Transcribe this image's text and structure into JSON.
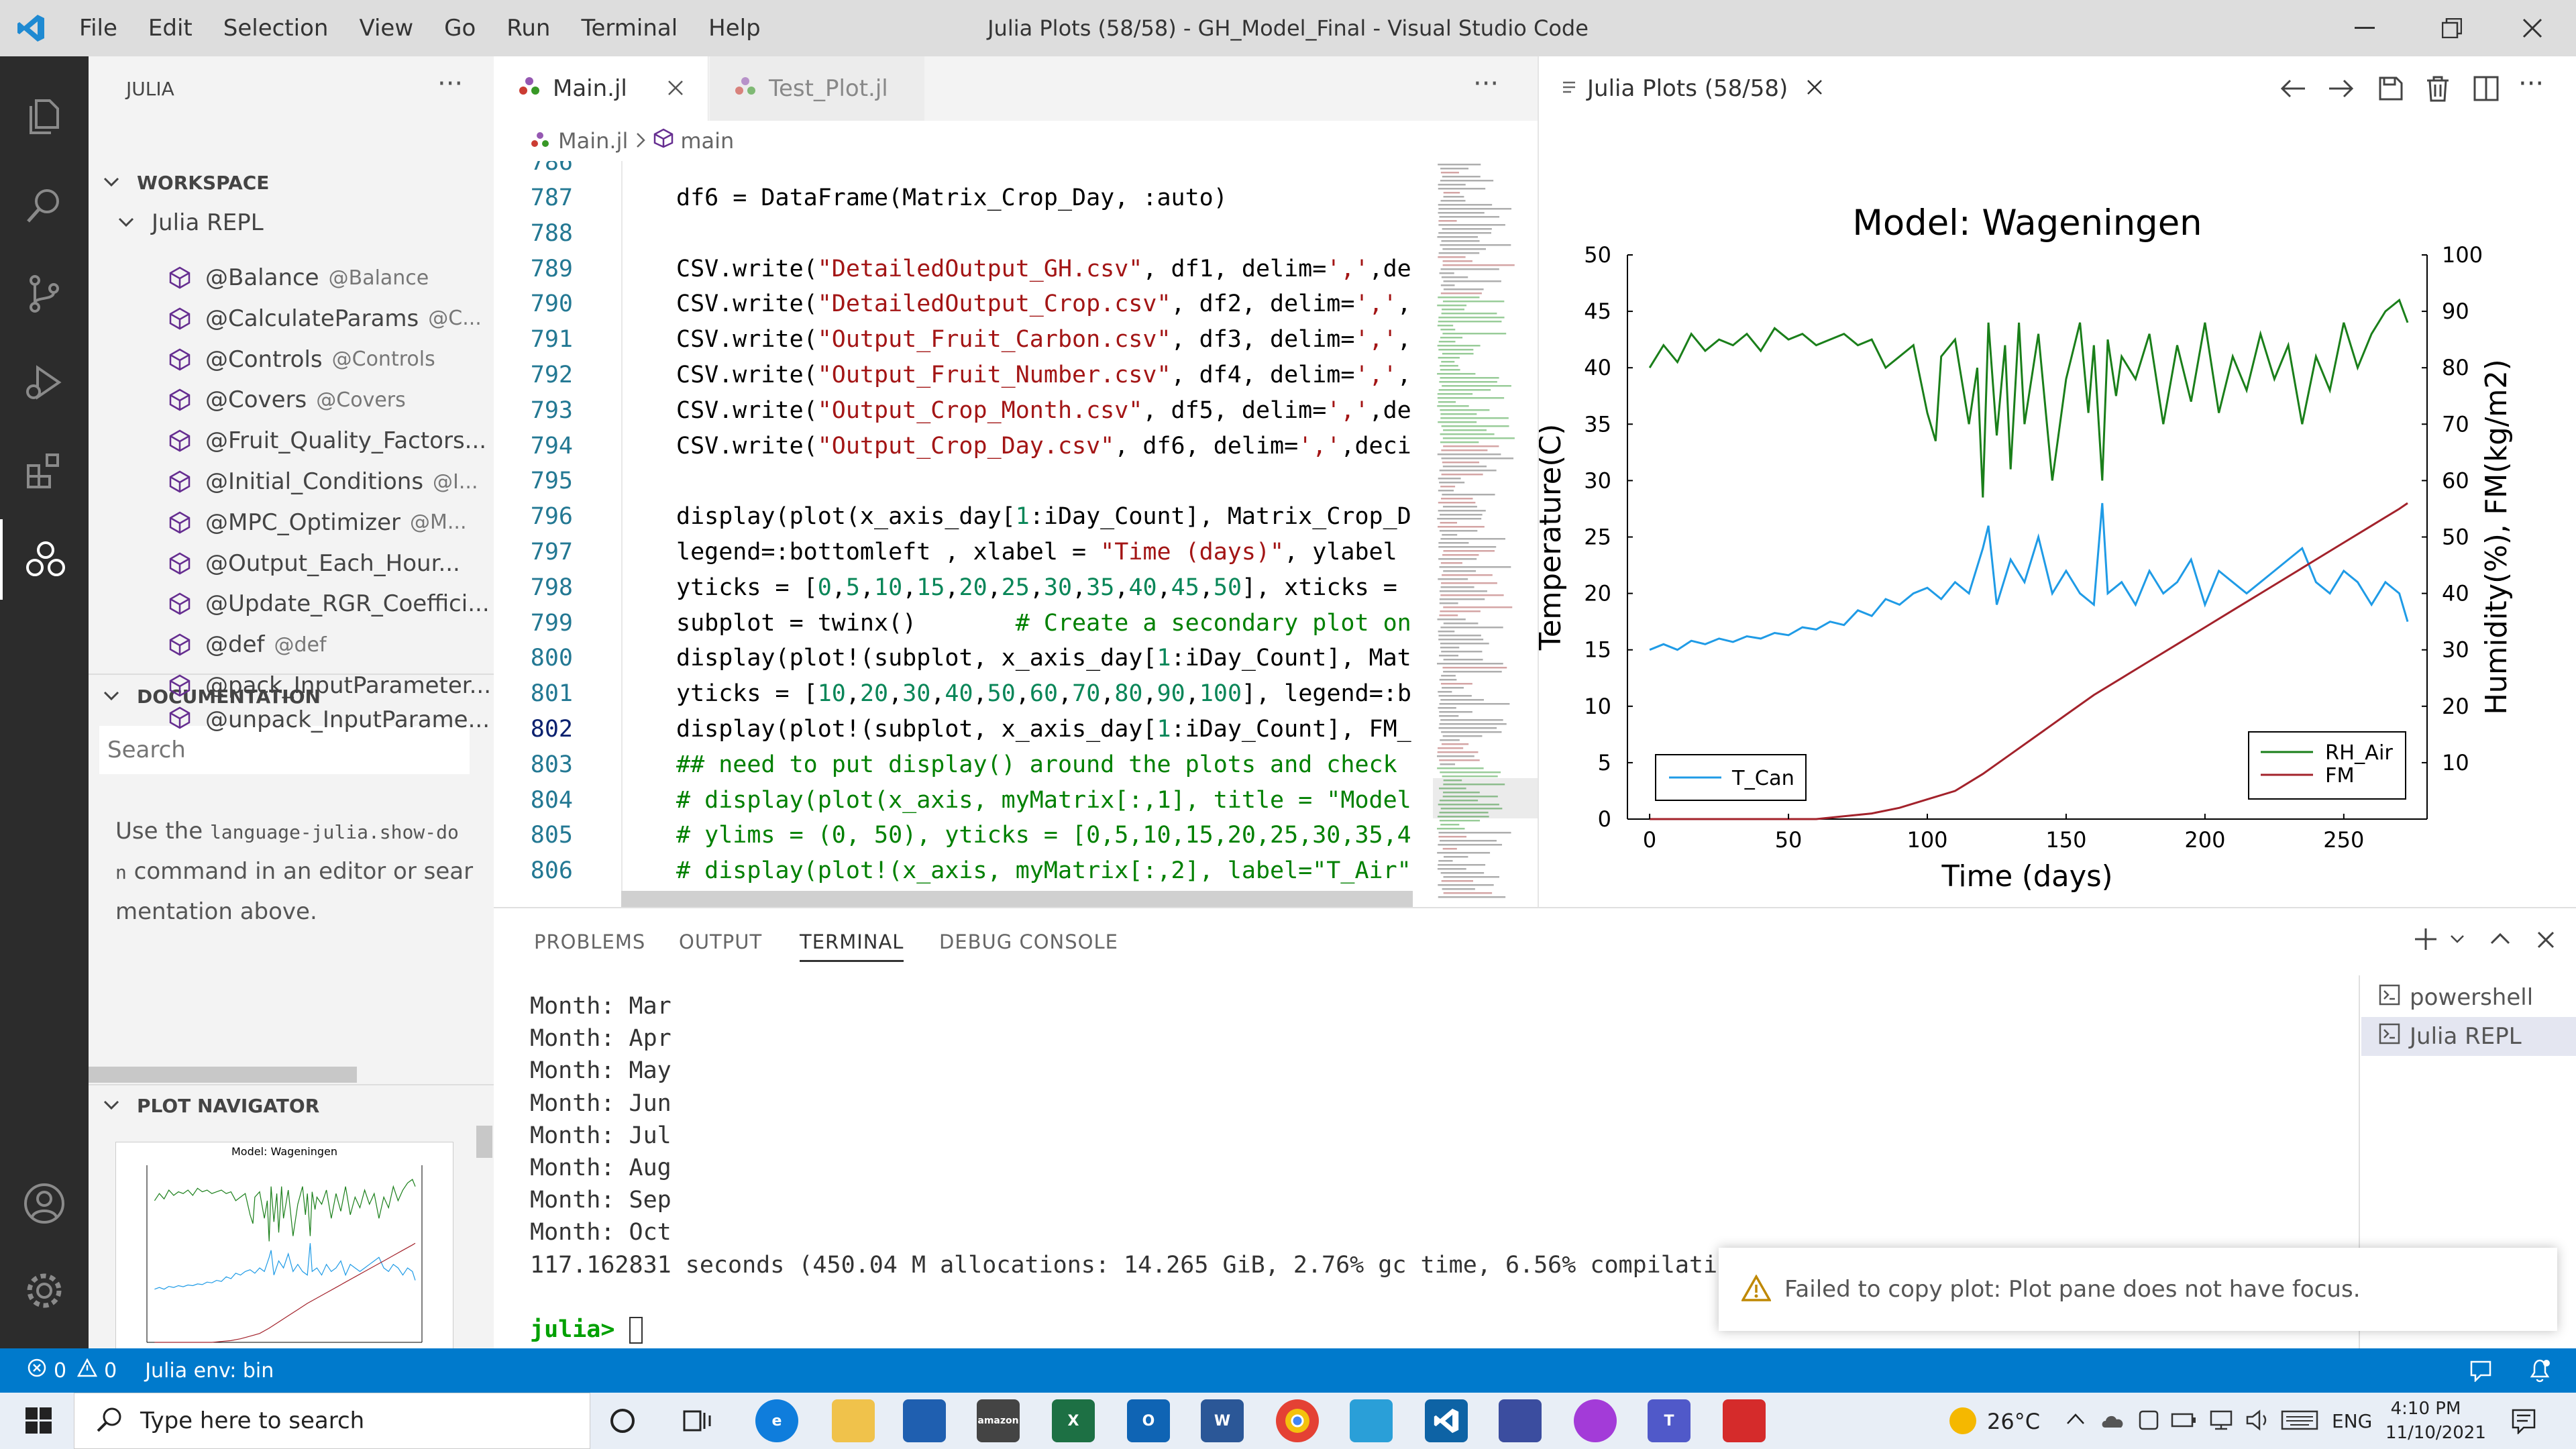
{
  "titlebar": {
    "menu": [
      "File",
      "Edit",
      "Selection",
      "View",
      "Go",
      "Run",
      "Terminal",
      "Help"
    ],
    "title": "Julia Plots (58/58) - GH_Model_Final - Visual Studio Code"
  },
  "sidebar": {
    "header": "JULIA",
    "workspace_label": "WORKSPACE",
    "repl_label": "Julia REPL",
    "items": [
      {
        "label": "@Balance",
        "sub": "@Balance"
      },
      {
        "label": "@CalculateParams",
        "sub": "@C..."
      },
      {
        "label": "@Controls",
        "sub": "@Controls"
      },
      {
        "label": "@Covers",
        "sub": "@Covers"
      },
      {
        "label": "@Fruit_Quality_Factors...",
        "sub": ""
      },
      {
        "label": "@Initial_Conditions",
        "sub": "@I..."
      },
      {
        "label": "@MPC_Optimizer",
        "sub": "@M..."
      },
      {
        "label": "@Output_Each_Hour...",
        "sub": ""
      },
      {
        "label": "@Update_RGR_Coeffici...",
        "sub": ""
      },
      {
        "label": "@def",
        "sub": "@def"
      },
      {
        "label": "@pack_InputParameter...",
        "sub": ""
      },
      {
        "label": "@unpack_InputParame...",
        "sub": ""
      }
    ],
    "documentation_label": "DOCUMENTATION",
    "search_placeholder": "Search",
    "doc_text_1": "Use the ",
    "doc_code_1": "language-julia.show-do",
    "doc_code_2": "n",
    "doc_text_2": " command in an editor or sear",
    "doc_text_3": "mentation above.",
    "plot_navigator_label": "PLOT NAVIGATOR",
    "thumb_title": "Model: Wageningen"
  },
  "editor": {
    "tabs": [
      {
        "label": "Main.jl",
        "active": true
      },
      {
        "label": "Test_Plot.jl",
        "active": false
      }
    ],
    "breadcrumb_file": "Main.jl",
    "breadcrumb_symbol": "main",
    "lines": [
      {
        "n": "786",
        "t": ""
      },
      {
        "n": "787",
        "t": "df6 = DataFrame(Matrix_Crop_Day, :auto)"
      },
      {
        "n": "788",
        "t": ""
      },
      {
        "n": "789",
        "t": "CSV.write(\"DetailedOutput_GH.csv\", df1, delim=',',de"
      },
      {
        "n": "790",
        "t": "CSV.write(\"DetailedOutput_Crop.csv\", df2, delim=',',"
      },
      {
        "n": "791",
        "t": "CSV.write(\"Output_Fruit_Carbon.csv\", df3, delim=',',"
      },
      {
        "n": "792",
        "t": "CSV.write(\"Output_Fruit_Number.csv\", df4, delim=',',"
      },
      {
        "n": "793",
        "t": "CSV.write(\"Output_Crop_Month.csv\", df5, delim=',',de"
      },
      {
        "n": "794",
        "t": "CSV.write(\"Output_Crop_Day.csv\", df6, delim=',',deci"
      },
      {
        "n": "795",
        "t": ""
      },
      {
        "n": "796",
        "t": "display(plot(x_axis_day[1:iDay_Count], Matrix_Crop_D"
      },
      {
        "n": "797",
        "t": "legend=:bottomleft , xlabel = \"Time (days)\", ylabel"
      },
      {
        "n": "798",
        "t": "yticks = [0,5,10,15,20,25,30,35,40,45,50], xticks ="
      },
      {
        "n": "799",
        "t": "subplot = twinx()       # Create a secondary plot on"
      },
      {
        "n": "800",
        "t": "display(plot!(subplot, x_axis_day[1:iDay_Count], Mat"
      },
      {
        "n": "801",
        "t": "yticks = [10,20,30,40,50,60,70,80,90,100], legend=:b"
      },
      {
        "n": "802",
        "t": "display(plot!(subplot, x_axis_day[1:iDay_Count], FM_"
      },
      {
        "n": "803",
        "t": "## need to put display() around the plots and check"
      },
      {
        "n": "804",
        "t": "# display(plot(x_axis, myMatrix[:,1], title = \"Model"
      },
      {
        "n": "805",
        "t": "# ylims = (0, 50), yticks = [0,5,10,15,20,25,30,35,4"
      },
      {
        "n": "806",
        "t": "# display(plot!(x_axis, myMatrix[:,2], label=\"T_Air\""
      }
    ]
  },
  "plotpane": {
    "tab_label": "Julia Plots (58/58)"
  },
  "chart_data": {
    "type": "line",
    "title": "Model: Wageningen",
    "xlabel": "Time (days)",
    "ylabel": "Temperature(C)",
    "y2label": "Humidity(%), FM(kg/m2)",
    "xlim": [
      -8,
      280
    ],
    "ylim": [
      0,
      50
    ],
    "y2lim": [
      0,
      100
    ],
    "xticks": [
      0,
      50,
      100,
      150,
      200,
      250
    ],
    "yticks": [
      0,
      5,
      10,
      15,
      20,
      25,
      30,
      35,
      40,
      45,
      50
    ],
    "y2ticks": [
      10,
      20,
      30,
      40,
      50,
      60,
      70,
      80,
      90,
      100
    ],
    "grid": false,
    "legend_left": {
      "placement": "bottom-left",
      "entries": [
        "T_Can"
      ]
    },
    "legend_right": {
      "placement": "bottom-right",
      "entries": [
        "RH_Air",
        "FM"
      ]
    },
    "colors": {
      "T_Can": "#1f9be6",
      "RH_Air": "#1a7f1a",
      "FM": "#a3222b"
    },
    "series": [
      {
        "name": "T_Can",
        "axis": "left",
        "x": [
          0,
          5,
          10,
          15,
          20,
          25,
          30,
          35,
          40,
          45,
          50,
          55,
          60,
          65,
          70,
          75,
          80,
          85,
          90,
          95,
          100,
          105,
          110,
          115,
          120,
          122,
          125,
          130,
          135,
          140,
          145,
          150,
          155,
          160,
          163,
          165,
          170,
          175,
          180,
          185,
          190,
          195,
          200,
          205,
          210,
          215,
          220,
          225,
          230,
          235,
          240,
          245,
          250,
          255,
          260,
          265,
          270,
          273
        ],
        "y": [
          15,
          15.5,
          15,
          15.8,
          15.5,
          16,
          15.7,
          16.2,
          16,
          16.5,
          16.3,
          17,
          16.8,
          17.5,
          17.2,
          18.5,
          18,
          19.5,
          19,
          20,
          20.5,
          19.5,
          21,
          20,
          24,
          26,
          19,
          23,
          21,
          25,
          20,
          22,
          20,
          19,
          28,
          20,
          21,
          19,
          22,
          20,
          21,
          23,
          19,
          22,
          21,
          20,
          21,
          22,
          23,
          24,
          21,
          20,
          22,
          21,
          19,
          21,
          20,
          17.5
        ]
      },
      {
        "name": "RH_Air",
        "axis": "right",
        "x": [
          0,
          5,
          10,
          15,
          20,
          25,
          30,
          35,
          40,
          45,
          50,
          55,
          60,
          65,
          70,
          75,
          80,
          85,
          90,
          95,
          100,
          103,
          105,
          110,
          115,
          118,
          120,
          122,
          125,
          128,
          130,
          133,
          135,
          140,
          145,
          150,
          155,
          158,
          160,
          163,
          165,
          168,
          170,
          175,
          180,
          185,
          190,
          195,
          200,
          205,
          210,
          215,
          220,
          225,
          230,
          235,
          240,
          245,
          250,
          255,
          260,
          265,
          270,
          273
        ],
        "y": [
          80,
          84,
          81,
          86,
          83,
          85,
          84,
          86,
          83,
          87,
          85,
          86,
          84,
          85,
          86,
          84,
          85,
          80,
          82,
          84,
          72,
          67,
          82,
          85,
          70,
          80,
          57,
          88,
          68,
          84,
          62,
          88,
          70,
          86,
          60,
          78,
          88,
          72,
          84,
          60,
          85,
          75,
          82,
          78,
          86,
          70,
          84,
          74,
          88,
          72,
          82,
          76,
          86,
          78,
          84,
          70,
          82,
          76,
          88,
          80,
          86,
          90,
          92,
          88
        ]
      },
      {
        "name": "FM",
        "axis": "right",
        "x": [
          0,
          60,
          70,
          80,
          90,
          100,
          110,
          120,
          130,
          140,
          150,
          160,
          170,
          180,
          190,
          200,
          210,
          220,
          230,
          240,
          250,
          260,
          270,
          273
        ],
        "y": [
          0,
          0,
          0.5,
          1,
          2,
          3.5,
          5,
          8,
          11.5,
          15,
          18.5,
          22,
          25,
          28,
          31,
          34,
          37,
          40,
          43,
          46,
          49,
          52,
          55,
          56
        ]
      }
    ]
  },
  "panel": {
    "tabs": [
      "PROBLEMS",
      "OUTPUT",
      "TERMINAL",
      "DEBUG CONSOLE"
    ],
    "active_tab": "TERMINAL",
    "terminal_lines": [
      "Month: Mar",
      "Month: Apr",
      "Month: May",
      "Month: Jun",
      "Month: Jul",
      "Month: Aug",
      "Month: Sep",
      "Month: Oct",
      "117.162831 seconds (450.04 M allocations: 14.265 GiB, 2.76% gc time, 6.56% compilatio"
    ],
    "prompt": "julia>",
    "terminals": [
      "powershell",
      "Julia REPL"
    ]
  },
  "notification": {
    "text": "Failed to copy plot: Plot pane does not have focus."
  },
  "statusbar": {
    "errors": "0",
    "warnings": "0",
    "env": "Julia env: bin"
  },
  "taskbar": {
    "search_placeholder": "Type here to search",
    "temperature": "26°C",
    "lang": "ENG",
    "time": "4:10 PM",
    "date": "11/10/2021"
  }
}
